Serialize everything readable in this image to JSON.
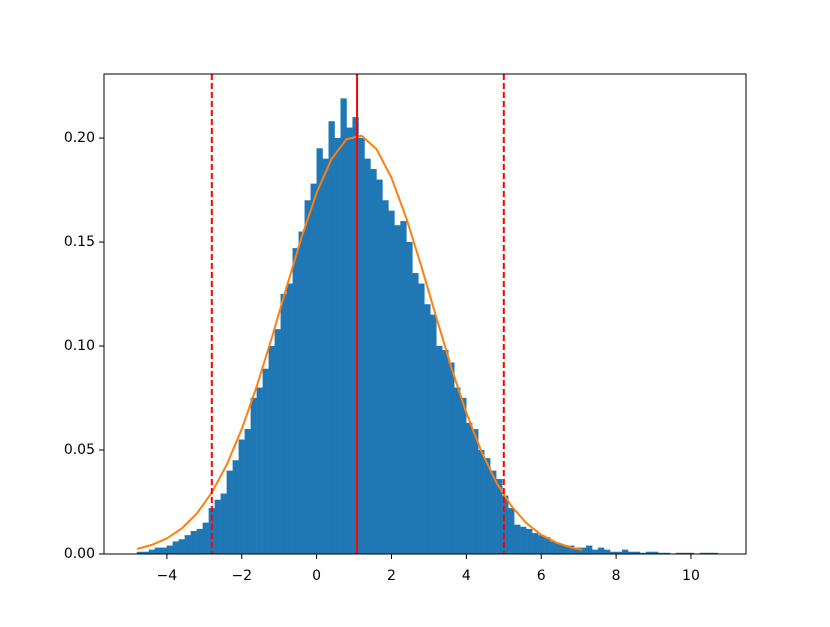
{
  "chart_data": {
    "type": "histogram",
    "bins": [
      -4.8,
      -4.64,
      -4.48,
      -4.32,
      -4.16,
      -4,
      -3.84,
      -3.68,
      -3.52,
      -3.36,
      -3.2,
      -3.04,
      -2.88,
      -2.72,
      -2.56,
      -2.4,
      -2.24,
      -2.08,
      -1.92,
      -1.76,
      -1.6,
      -1.44,
      -1.28,
      -1.12,
      -0.96,
      -0.8,
      -0.64,
      -0.48,
      -0.32,
      -0.16,
      0,
      0.16,
      0.32,
      0.48,
      0.64,
      0.8,
      0.96,
      1.12,
      1.28,
      1.44,
      1.6,
      1.76,
      1.92,
      2.08,
      2.24,
      2.4,
      2.56,
      2.72,
      2.88,
      3.04,
      3.2,
      3.36,
      3.52,
      3.68,
      3.84,
      4,
      4.16,
      4.32,
      4.48,
      4.64,
      4.8,
      4.96,
      5.12,
      5.28,
      5.44,
      5.6,
      5.76,
      5.92,
      6.08,
      6.24,
      6.4,
      6.56,
      6.72,
      6.88,
      7.04,
      7.2,
      7.36,
      7.52,
      7.68,
      7.84,
      8,
      8.16,
      8.32,
      8.48,
      8.64,
      8.8,
      8.96,
      9.12,
      9.28,
      9.44,
      9.6,
      9.76,
      9.92,
      10.08,
      10.24,
      10.4,
      10.56,
      10.72
    ],
    "values": [
      0.001,
      0.001,
      0.002,
      0.003,
      0.003,
      0.004,
      0.006,
      0.007,
      0.009,
      0.011,
      0.012,
      0.015,
      0.022,
      0.026,
      0.029,
      0.04,
      0.045,
      0.055,
      0.06,
      0.075,
      0.08,
      0.089,
      0.1,
      0.108,
      0.125,
      0.13,
      0.147,
      0.155,
      0.17,
      0.178,
      0.195,
      0.19,
      0.208,
      0.2,
      0.219,
      0.205,
      0.21,
      0.2,
      0.19,
      0.185,
      0.18,
      0.17,
      0.165,
      0.158,
      0.16,
      0.15,
      0.135,
      0.13,
      0.12,
      0.115,
      0.1,
      0.098,
      0.092,
      0.08,
      0.075,
      0.063,
      0.06,
      0.05,
      0.046,
      0.04,
      0.036,
      0.028,
      0.022,
      0.014,
      0.013,
      0.012,
      0.01,
      0.009,
      0.008,
      0.006,
      0.005,
      0.004,
      0.004,
      0.003,
      0.003,
      0.004,
      0.002,
      0.003,
      0.002,
      0.001,
      0.001,
      0.002,
      0.001,
      0.001,
      0.0005,
      0.001,
      0.001,
      0.0005,
      0.0005,
      0,
      0.0005,
      0.0005,
      0.0005,
      0,
      0.0005,
      0.0005,
      0.0005
    ],
    "color": "#1f77b4",
    "curve": {
      "color": "#ff7f0e",
      "x": [
        -4.8,
        -4.4,
        -4,
        -3.6,
        -3.2,
        -2.8,
        -2.4,
        -2,
        -1.6,
        -1.2,
        -0.8,
        -0.4,
        0,
        0.4,
        0.8,
        1.2,
        1.6,
        2,
        2.4,
        2.8,
        3.2,
        3.6,
        4,
        4.4,
        4.8,
        5.2,
        5.6,
        6,
        6.4,
        6.8,
        7.1
      ],
      "values": [
        0.00245,
        0.00438,
        0.00749,
        0.01233,
        0.01947,
        0.02954,
        0.04298,
        0.06009,
        0.0806,
        0.1038,
        0.1284,
        0.1524,
        0.1737,
        0.19,
        0.1995,
        0.2011,
        0.1947,
        0.1809,
        0.1613,
        0.1382,
        0.1136,
        0.0896,
        0.0679,
        0.0494,
        0.0345,
        0.0231,
        0.0149,
        0.0092,
        0.0055,
        0.0031,
        0.002
      ]
    },
    "vlines": [
      {
        "x": 1.08,
        "color": "#ff0000",
        "style": "solid"
      },
      {
        "x": -2.8,
        "color": "#ff0000",
        "style": "dashed"
      },
      {
        "x": 5.0,
        "color": "#ff0000",
        "style": "dashed"
      }
    ],
    "xlim": [
      -5.68,
      11.47
    ],
    "ylim": [
      0,
      0.2308
    ],
    "xticks": [
      {
        "value": -4,
        "label": "−4"
      },
      {
        "value": -2,
        "label": "−2"
      },
      0,
      2,
      4,
      6,
      8,
      10
    ],
    "yticks": [
      {
        "value": 0,
        "label": "0.00"
      },
      {
        "value": 0.05,
        "label": "0.05"
      },
      {
        "value": 0.1,
        "label": "0.10"
      },
      {
        "value": 0.15,
        "label": "0.15"
      },
      {
        "value": 0.2,
        "label": "0.20"
      }
    ]
  }
}
